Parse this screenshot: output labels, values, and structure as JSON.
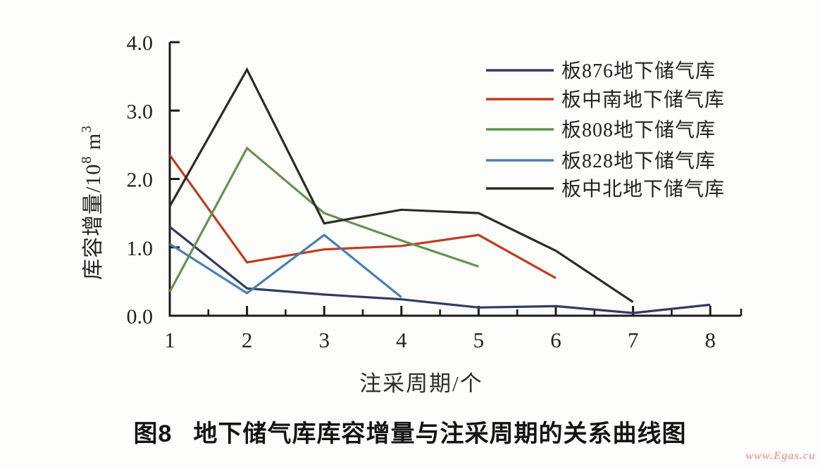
{
  "caption": {
    "prefix": "图8",
    "text": "地下储气库库容增量与注采周期的关系曲线图"
  },
  "watermark": {
    "text": "www.Egas.cu",
    "color": "#efa5a5"
  },
  "chart_data": {
    "type": "line",
    "title": "",
    "xlabel": "注采周期/个",
    "ylabel": "库容增量/10⁸ m³",
    "ylabel_parts": {
      "pre": "库容增量/10",
      "sup1": "8",
      "mid": " m",
      "sup2": "3"
    },
    "xlim": [
      1,
      8.4
    ],
    "ylim": [
      0,
      4.0
    ],
    "x_major_ticks": [
      1,
      2,
      3,
      4,
      5,
      6,
      7,
      8
    ],
    "x_minor_step": 0.5,
    "y_ticks": [
      0.0,
      1.0,
      2.0,
      3.0,
      4.0
    ],
    "y_tick_labels": [
      "0.0",
      "1.0",
      "2.0",
      "3.0",
      "4.0"
    ],
    "grid": false,
    "legend_position": "top-right-inside",
    "axis_color": "#1c1c1c",
    "series": [
      {
        "name": "板876地下储气库",
        "color": "#323a63",
        "x": [
          1,
          2,
          3,
          4,
          5,
          6,
          7,
          8
        ],
        "values": [
          1.3,
          0.4,
          0.31,
          0.24,
          0.12,
          0.14,
          0.04,
          0.16
        ]
      },
      {
        "name": "板中南地下储气库",
        "color": "#c23b1d",
        "x": [
          1,
          2,
          3,
          4,
          5,
          6
        ],
        "values": [
          2.35,
          0.78,
          0.97,
          1.02,
          1.18,
          0.55
        ]
      },
      {
        "name": "板808地下储气库",
        "color": "#61944f",
        "x": [
          1,
          2,
          3,
          4,
          5
        ],
        "values": [
          0.35,
          2.45,
          1.5,
          1.1,
          0.72
        ]
      },
      {
        "name": "板828地下储气库",
        "color": "#4a80b4",
        "x": [
          1,
          2,
          3,
          4
        ],
        "values": [
          1.05,
          0.33,
          1.18,
          0.27
        ]
      },
      {
        "name": "板中北地下储气库",
        "color": "#2c2c21",
        "x": [
          1,
          2,
          3,
          4,
          5,
          6,
          7
        ],
        "values": [
          1.6,
          3.6,
          1.35,
          1.55,
          1.5,
          0.95,
          0.2
        ]
      }
    ]
  }
}
